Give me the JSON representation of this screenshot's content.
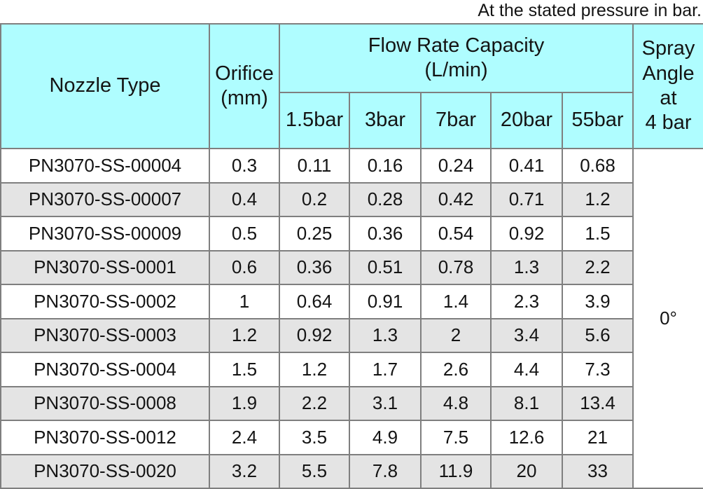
{
  "caption": "At the stated pressure in bar.",
  "table": {
    "headers": {
      "nozzle_type": "Nozzle Type",
      "orifice": "Orifice\n(mm)",
      "flow_rate": "Flow Rate Capacity\n(L/min)",
      "spray_angle": "Spray\nAngle\nat\n4 bar",
      "pressures": [
        "1.5bar",
        "3bar",
        "7bar",
        "20bar",
        "55bar"
      ]
    },
    "rows": [
      {
        "nozzle": "PN3070-SS-00004",
        "orifice": "0.3",
        "flows": [
          "0.11",
          "0.16",
          "0.24",
          "0.41",
          "0.68"
        ]
      },
      {
        "nozzle": "PN3070-SS-00007",
        "orifice": "0.4",
        "flows": [
          "0.2",
          "0.28",
          "0.42",
          "0.71",
          "1.2"
        ]
      },
      {
        "nozzle": "PN3070-SS-00009",
        "orifice": "0.5",
        "flows": [
          "0.25",
          "0.36",
          "0.54",
          "0.92",
          "1.5"
        ]
      },
      {
        "nozzle": "PN3070-SS-0001",
        "orifice": "0.6",
        "flows": [
          "0.36",
          "0.51",
          "0.78",
          "1.3",
          "2.2"
        ]
      },
      {
        "nozzle": "PN3070-SS-0002",
        "orifice": "1",
        "flows": [
          "0.64",
          "0.91",
          "1.4",
          "2.3",
          "3.9"
        ]
      },
      {
        "nozzle": "PN3070-SS-0003",
        "orifice": "1.2",
        "flows": [
          "0.92",
          "1.3",
          "2",
          "3.4",
          "5.6"
        ]
      },
      {
        "nozzle": "PN3070-SS-0004",
        "orifice": "1.5",
        "flows": [
          "1.2",
          "1.7",
          "2.6",
          "4.4",
          "7.3"
        ]
      },
      {
        "nozzle": "PN3070-SS-0008",
        "orifice": "1.9",
        "flows": [
          "2.2",
          "3.1",
          "4.8",
          "8.1",
          "13.4"
        ]
      },
      {
        "nozzle": "PN3070-SS-0012",
        "orifice": "2.4",
        "flows": [
          "3.5",
          "4.9",
          "7.5",
          "12.6",
          "21"
        ]
      },
      {
        "nozzle": "PN3070-SS-0020",
        "orifice": "3.2",
        "flows": [
          "5.5",
          "7.8",
          "11.9",
          "20",
          "33"
        ]
      }
    ],
    "spray_angle_value": "0°"
  },
  "colors": {
    "header_background": "#affdff",
    "alternate_row_background": "#e4e4e4",
    "grid_border": "#7f7f7f",
    "text": "#141414"
  }
}
